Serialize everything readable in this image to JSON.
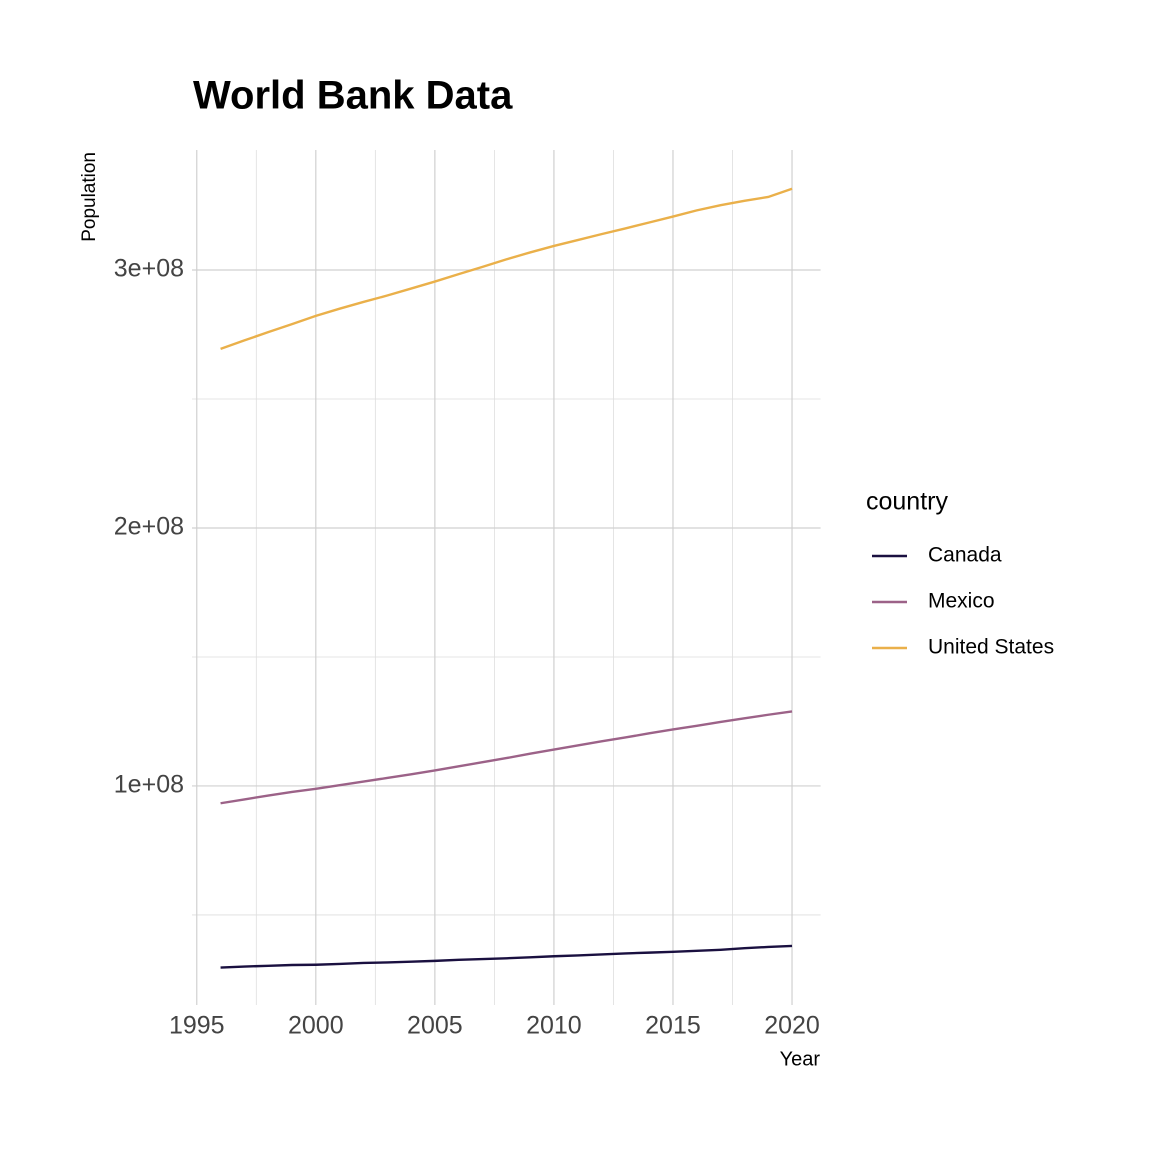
{
  "chart_data": {
    "type": "line",
    "title": "World Bank Data",
    "x_label": "Year",
    "y_label": "Population",
    "legend_title": "country",
    "x": [
      1996,
      1997,
      1998,
      1999,
      2000,
      2001,
      2002,
      2003,
      2004,
      2005,
      2006,
      2007,
      2008,
      2009,
      2010,
      2011,
      2012,
      2013,
      2014,
      2015,
      2016,
      2017,
      2018,
      2019,
      2020
    ],
    "series": [
      {
        "name": "Canada",
        "color": "#1a1040",
        "values": [
          29600000,
          30000000,
          30300000,
          30600000,
          30700000,
          31000000,
          31400000,
          31600000,
          31900000,
          32200000,
          32600000,
          32900000,
          33200000,
          33600000,
          34000000,
          34300000,
          34700000,
          35100000,
          35400000,
          35700000,
          36100000,
          36500000,
          37100000,
          37600000,
          38000000
        ]
      },
      {
        "name": "Mexico",
        "color": "#9c6288",
        "values": [
          93300000,
          94800000,
          96300000,
          97700000,
          98900000,
          100300000,
          101700000,
          103100000,
          104500000,
          106000000,
          107600000,
          109200000,
          110800000,
          112500000,
          114100000,
          115700000,
          117300000,
          118800000,
          120400000,
          121900000,
          123300000,
          124800000,
          126200000,
          127600000,
          128900000
        ]
      },
      {
        "name": "United States",
        "color": "#eab04a",
        "values": [
          269400000,
          272700000,
          275900000,
          279000000,
          282200000,
          285000000,
          287600000,
          290100000,
          292800000,
          295500000,
          298400000,
          301200000,
          304100000,
          306800000,
          309300000,
          311600000,
          313900000,
          316100000,
          318400000,
          320700000,
          323100000,
          325100000,
          326800000,
          328300000,
          331500000
        ]
      }
    ],
    "xlim": [
      1994.8,
      2021.2
    ],
    "xticks": [
      1995,
      2000,
      2005,
      2010,
      2015,
      2020
    ],
    "xminor": [
      1997.5,
      2002.5,
      2007.5,
      2012.5,
      2017.5
    ],
    "ylim": [
      15100000,
      346500000
    ],
    "yticks": [
      {
        "value": 100000000,
        "label": "1e+08"
      },
      {
        "value": 200000000,
        "label": "2e+08"
      },
      {
        "value": 300000000,
        "label": "3e+08"
      }
    ],
    "yminor": [
      50000000,
      150000000,
      250000000
    ],
    "grid": true,
    "legend": "right"
  }
}
